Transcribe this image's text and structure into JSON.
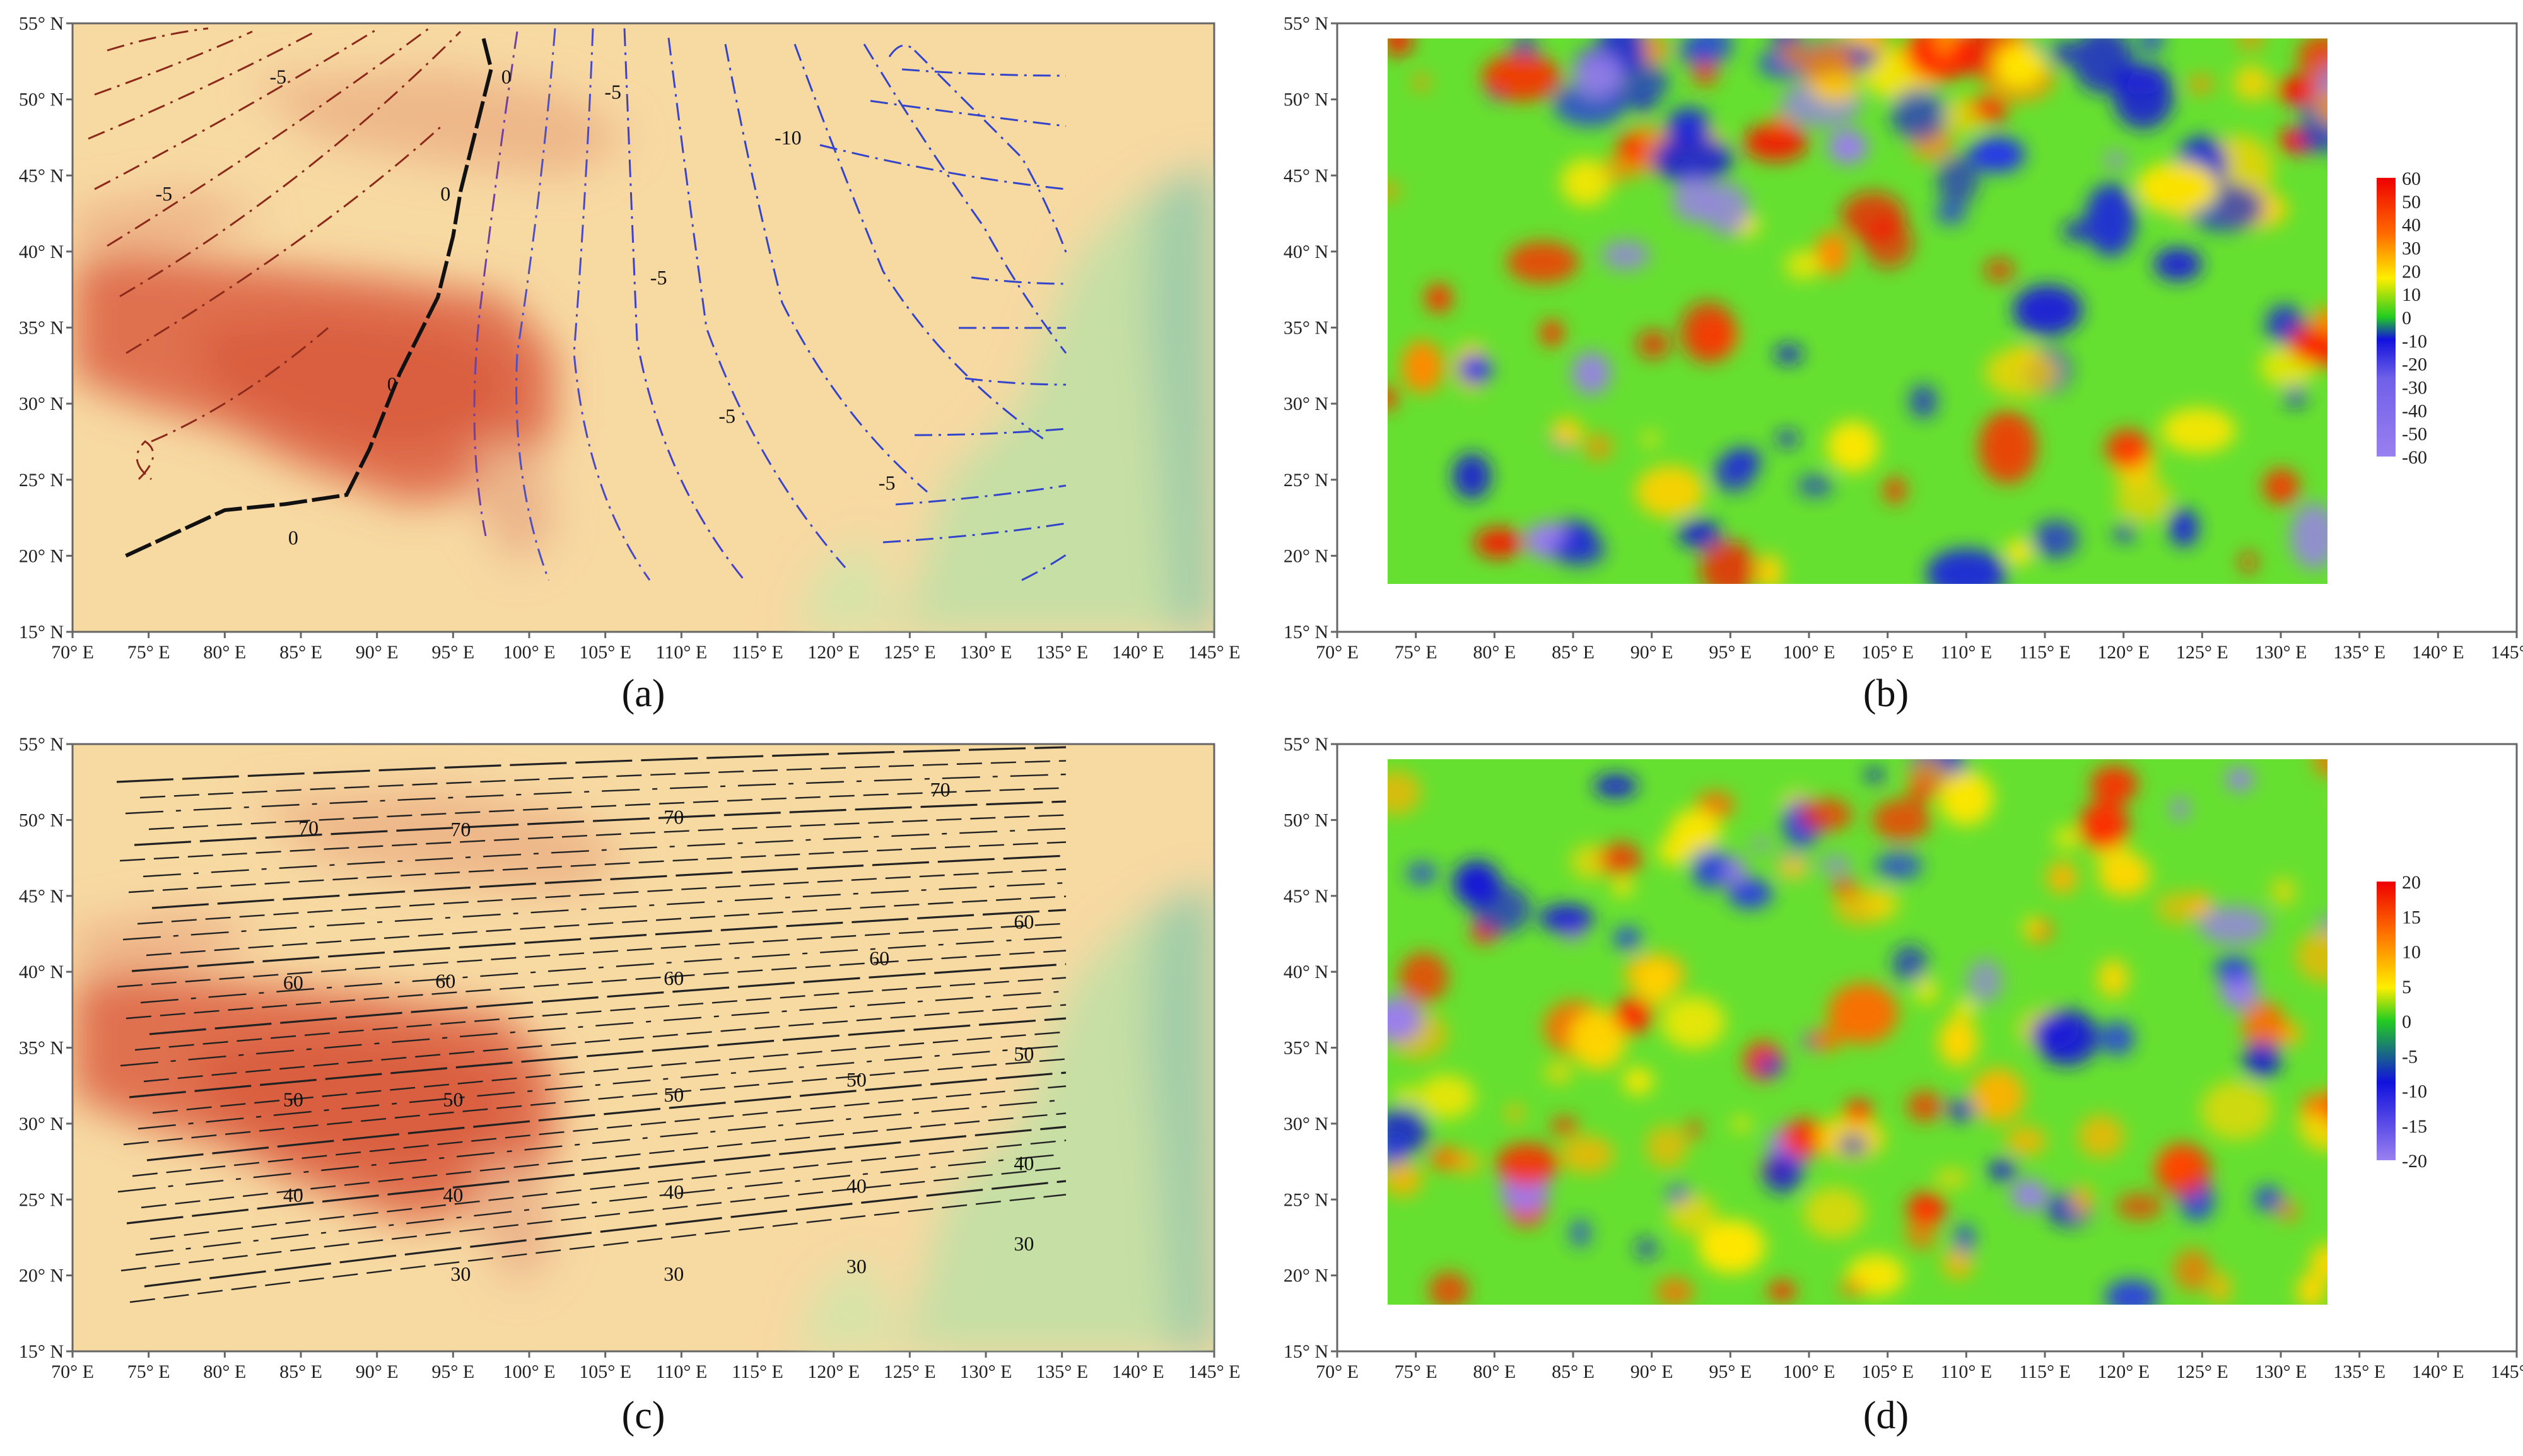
{
  "figure": {
    "panels": [
      {
        "id": "a",
        "caption": "(a)",
        "kind": "contour-map"
      },
      {
        "id": "b",
        "caption": "(b)",
        "kind": "residual-map"
      },
      {
        "id": "c",
        "caption": "(c)",
        "kind": "contour-map"
      },
      {
        "id": "d",
        "caption": "(d)",
        "kind": "residual-map"
      }
    ],
    "lon_ticks": [
      "70° E",
      "75° E",
      "80° E",
      "85° E",
      "90° E",
      "95° E",
      "100° E",
      "105° E",
      "110° E",
      "115° E",
      "120° E",
      "125° E",
      "130° E",
      "135° E",
      "140° E",
      "145° E"
    ],
    "lat_ticks": [
      "15° N",
      "20° N",
      "25° N",
      "30° N",
      "35° N",
      "40° N",
      "45° N",
      "50° N",
      "55° N"
    ],
    "lon_range": [
      70,
      145
    ],
    "lat_range": [
      15,
      55
    ],
    "residual_extent": {
      "lon": [
        73,
        135
      ],
      "lat": [
        18,
        54
      ]
    },
    "colorbar_b": {
      "ticks": [
        "60",
        "50",
        "40",
        "30",
        "20",
        "10",
        "0",
        "-10",
        "-20",
        "-30",
        "-40",
        "-50",
        "-60"
      ],
      "range": [
        -60,
        60
      ]
    },
    "colorbar_d": {
      "ticks": [
        "20",
        "15",
        "10",
        "5",
        "0",
        "-5",
        "-10",
        "-15",
        "-20"
      ],
      "range": [
        -20,
        20
      ]
    },
    "contours_a": {
      "labels": [
        {
          "text": "-5",
          "lon": 83.5,
          "lat": 51.5
        },
        {
          "text": "0",
          "lon": 98.5,
          "lat": 51.5
        },
        {
          "text": "-5",
          "lon": 105.5,
          "lat": 50.5
        },
        {
          "text": "-10",
          "lon": 117,
          "lat": 47.5
        },
        {
          "text": "-5",
          "lon": 76,
          "lat": 43.8
        },
        {
          "text": "0",
          "lon": 94.5,
          "lat": 43.8
        },
        {
          "text": "-5",
          "lon": 108.5,
          "lat": 38.3
        },
        {
          "text": "0",
          "lon": 91,
          "lat": 31.3
        },
        {
          "text": "-5",
          "lon": 113,
          "lat": 29.2
        },
        {
          "text": "-5",
          "lon": 123.5,
          "lat": 24.8
        },
        {
          "text": "0",
          "lon": 84.5,
          "lat": 21.2
        }
      ],
      "zero_line": [
        [
          73.5,
          20
        ],
        [
          80,
          23
        ],
        [
          84,
          23.4
        ],
        [
          88,
          24
        ],
        [
          89.5,
          27
        ],
        [
          91.5,
          32
        ],
        [
          94,
          37
        ],
        [
          95,
          41
        ],
        [
          95.5,
          44
        ],
        [
          96.5,
          48
        ],
        [
          97.5,
          52
        ],
        [
          97,
          54
        ]
      ]
    },
    "contours_c": {
      "labels": [
        {
          "text": "70",
          "lon": 127,
          "lat": 52
        },
        {
          "text": "70",
          "lon": 85.5,
          "lat": 49.5
        },
        {
          "text": "70",
          "lon": 95.5,
          "lat": 49.4
        },
        {
          "text": "70",
          "lon": 109.5,
          "lat": 50.2
        },
        {
          "text": "60",
          "lon": 132.5,
          "lat": 43.3
        },
        {
          "text": "60",
          "lon": 123,
          "lat": 40.9
        },
        {
          "text": "60",
          "lon": 84.5,
          "lat": 39.3
        },
        {
          "text": "60",
          "lon": 94.5,
          "lat": 39.4
        },
        {
          "text": "60",
          "lon": 109.5,
          "lat": 39.6
        },
        {
          "text": "50",
          "lon": 132.5,
          "lat": 34.6
        },
        {
          "text": "50",
          "lon": 121.5,
          "lat": 32.9
        },
        {
          "text": "50",
          "lon": 84.5,
          "lat": 31.6
        },
        {
          "text": "50",
          "lon": 95,
          "lat": 31.6
        },
        {
          "text": "50",
          "lon": 109.5,
          "lat": 31.9
        },
        {
          "text": "40",
          "lon": 132.5,
          "lat": 27.4
        },
        {
          "text": "40",
          "lon": 121.5,
          "lat": 25.9
        },
        {
          "text": "40",
          "lon": 84.5,
          "lat": 25.3
        },
        {
          "text": "40",
          "lon": 95,
          "lat": 25.3
        },
        {
          "text": "40",
          "lon": 109.5,
          "lat": 25.5
        },
        {
          "text": "30",
          "lon": 132.5,
          "lat": 22.1
        },
        {
          "text": "30",
          "lon": 121.5,
          "lat": 20.6
        },
        {
          "text": "30",
          "lon": 95.5,
          "lat": 20.1
        },
        {
          "text": "30",
          "lon": 109.5,
          "lat": 20.1
        }
      ]
    }
  },
  "colors": {
    "terrain_base": "#f7d9a2",
    "plateau": "#e0714f",
    "lowland": "#c2dca0",
    "sea": "#a7cfaa",
    "contour_neg": "#3344cc",
    "contour_pos": "#8b2a1a"
  }
}
